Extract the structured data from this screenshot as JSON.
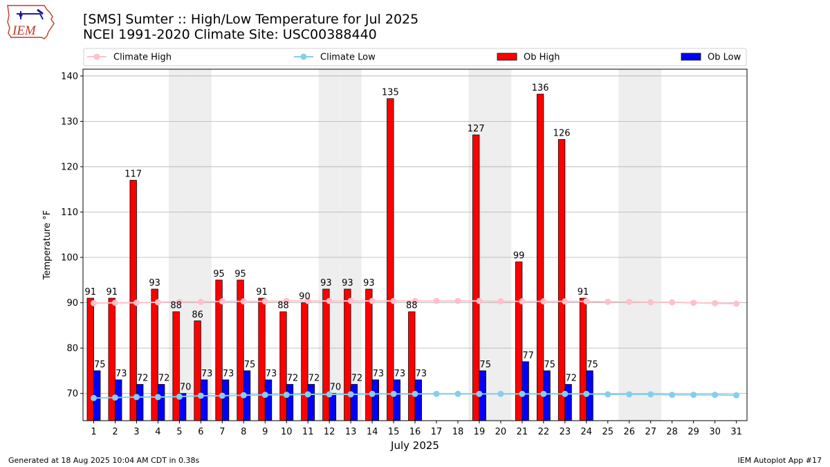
{
  "header": {
    "title": "[SMS] Sumter :: High/Low Temperature for Jul 2025",
    "subtitle": "NCEI 1991-2020 Climate Site: USC00388440",
    "logo_text": "IEM"
  },
  "footer": {
    "left": "Generated at 18 Aug 2025 10:04 AM CDT in 0.38s",
    "right": "IEM Autoplot App #17"
  },
  "colors": {
    "climate_high": "#ffc0cb",
    "climate_low": "#87ceeb",
    "ob_high": "#ff0000",
    "ob_low": "#0000ff",
    "weekend_shade": "#eeeeee",
    "grid": "#b0b0b0"
  },
  "chart_data": {
    "type": "bar",
    "xlabel": "July 2025",
    "ylabel": "Temperature °F",
    "ylim": [
      64,
      141.5
    ],
    "yticks": [
      70,
      80,
      90,
      100,
      110,
      120,
      130,
      140
    ],
    "grid": "horizontal",
    "legend_position": "top",
    "days": [
      1,
      2,
      3,
      4,
      5,
      6,
      7,
      8,
      9,
      10,
      11,
      12,
      13,
      14,
      15,
      16,
      17,
      18,
      19,
      20,
      21,
      22,
      23,
      24,
      25,
      26,
      27,
      28,
      29,
      30,
      31
    ],
    "weekend_days": [
      5,
      6,
      12,
      13,
      19,
      20,
      26,
      27
    ],
    "series": [
      {
        "name": "Climate High",
        "kind": "line",
        "values": [
          89.9,
          90.0,
          90.0,
          90.1,
          90.2,
          90.2,
          90.3,
          90.3,
          90.3,
          90.4,
          90.4,
          90.4,
          90.4,
          90.4,
          90.4,
          90.4,
          90.4,
          90.4,
          90.4,
          90.3,
          90.3,
          90.3,
          90.3,
          90.3,
          90.2,
          90.2,
          90.1,
          90.1,
          90.0,
          89.9,
          89.8
        ]
      },
      {
        "name": "Climate Low",
        "kind": "line",
        "values": [
          69.0,
          69.1,
          69.2,
          69.2,
          69.3,
          69.5,
          69.5,
          69.6,
          69.7,
          69.7,
          69.8,
          69.8,
          69.8,
          69.9,
          69.9,
          69.9,
          69.9,
          69.9,
          69.9,
          69.9,
          69.9,
          69.9,
          69.9,
          69.9,
          69.8,
          69.8,
          69.8,
          69.7,
          69.7,
          69.7,
          69.6
        ]
      },
      {
        "name": "Ob High",
        "kind": "bar",
        "values": [
          91,
          91,
          117,
          93,
          88,
          86,
          95,
          95,
          91,
          88,
          90,
          93,
          93,
          93,
          135,
          88,
          null,
          null,
          127,
          null,
          99,
          136,
          126,
          91,
          null,
          null,
          null,
          null,
          null,
          null,
          null
        ]
      },
      {
        "name": "Ob Low",
        "kind": "bar",
        "values": [
          75,
          73,
          72,
          72,
          70,
          73,
          73,
          75,
          73,
          72,
          72,
          70,
          72,
          73,
          73,
          73,
          null,
          null,
          75,
          null,
          77,
          75,
          72,
          75,
          null,
          null,
          null,
          null,
          null,
          null,
          null
        ]
      }
    ]
  }
}
